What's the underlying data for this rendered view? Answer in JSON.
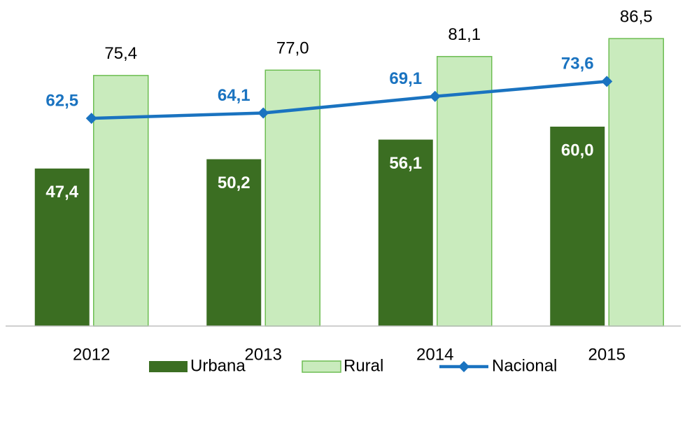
{
  "chart_data": {
    "type": "bar-line",
    "categories": [
      "2012",
      "2013",
      "2014",
      "2015"
    ],
    "series": [
      {
        "name": "Urbana",
        "type": "bar",
        "color": "#3b6e22",
        "values": [
          47.4,
          50.2,
          56.1,
          60.0
        ],
        "value_labels": [
          "47,4",
          "50,2",
          "56,1",
          "60,0"
        ]
      },
      {
        "name": "Rural",
        "type": "bar",
        "color": "#c9ebbd",
        "values": [
          75.4,
          77.0,
          81.1,
          86.5
        ],
        "value_labels": [
          "75,4",
          "77,0",
          "81,1",
          "86,5"
        ]
      },
      {
        "name": "Nacional",
        "type": "line",
        "color": "#1a73c0",
        "values": [
          62.5,
          64.1,
          69.1,
          73.6
        ],
        "value_labels": [
          "62,5",
          "64,1",
          "69,1",
          "73,6"
        ]
      }
    ],
    "ylim": [
      0,
      100
    ],
    "legend": "bottom"
  }
}
